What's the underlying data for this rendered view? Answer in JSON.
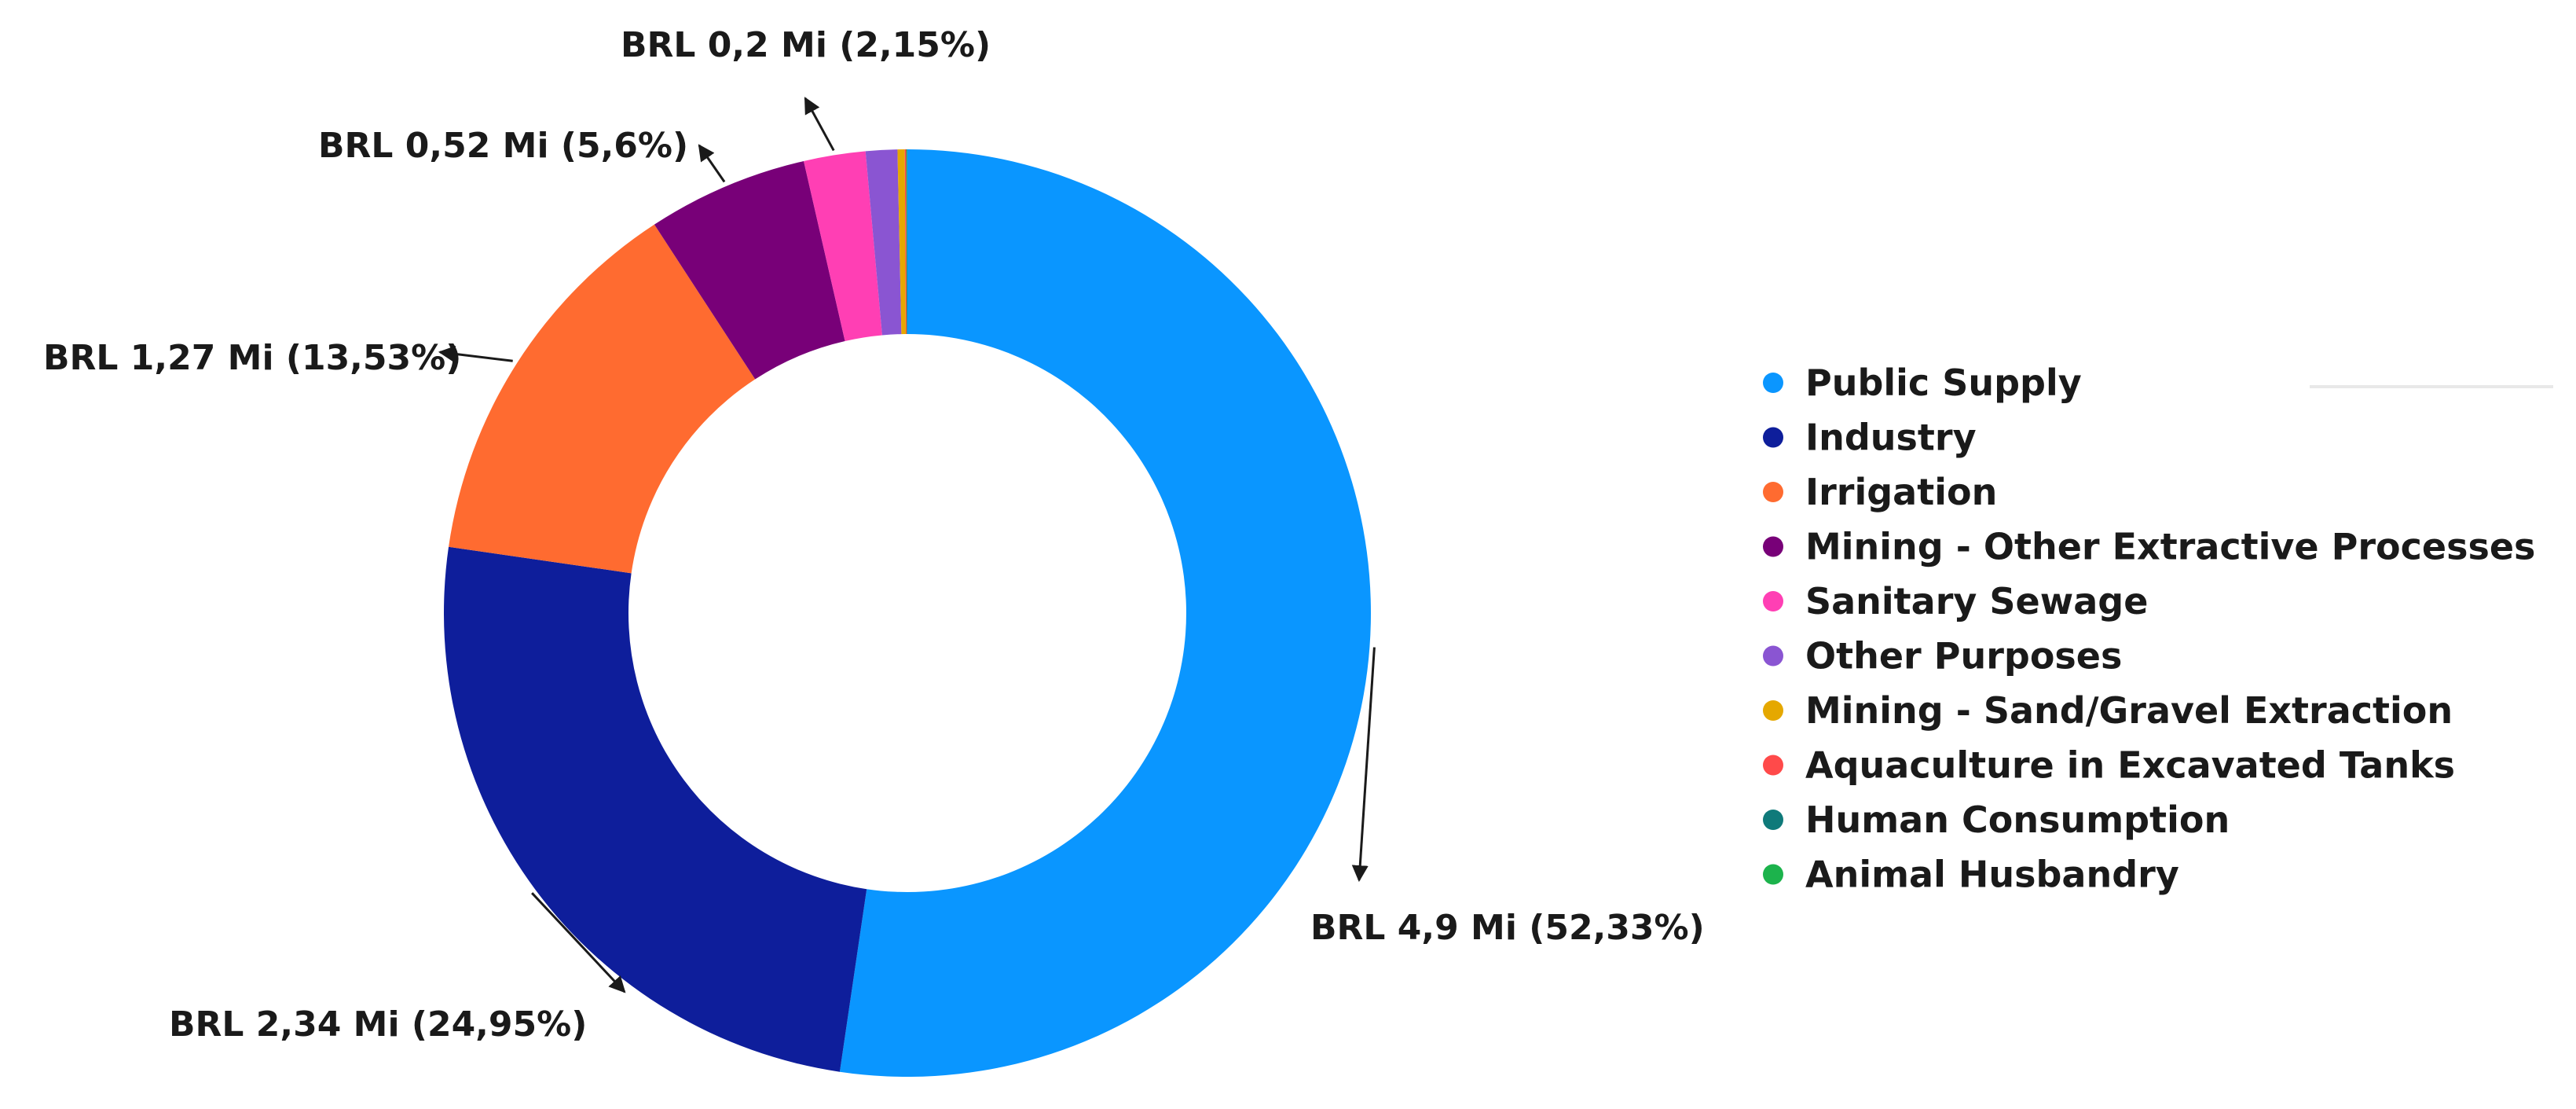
{
  "chart_data": {
    "type": "pie",
    "donut": true,
    "currency": "BRL",
    "categories": [
      "Public Supply",
      "Industry",
      "Irrigation",
      "Mining - Other Extractive Processes",
      "Sanitary Sewage",
      "Other Purposes",
      "Mining - Sand/Gravel Extraction",
      "Aquaculture in Excavated Tanks",
      "Human Consumption",
      "Animal Husbandry"
    ],
    "values": [
      52.33,
      24.95,
      13.53,
      5.6,
      2.15,
      1.1,
      0.25,
      0.05,
      0.02,
      0.02
    ],
    "colors": [
      "#0a96ff",
      "#0e1e9b",
      "#ff6b30",
      "#780078",
      "#ff3fb4",
      "#8a55d2",
      "#e5a800",
      "#ff4a4a",
      "#0f7a7a",
      "#1cb34c"
    ],
    "labels": [
      "BRL 4,9 Mi (52,33%)",
      "BRL 2,34 Mi (24,95%)",
      "BRL 1,27 Mi (13,53%)",
      "BRL 0,52 Mi (5,6%)",
      "BRL 0,2 Mi (2,15%)"
    ],
    "legend_position": "right"
  }
}
